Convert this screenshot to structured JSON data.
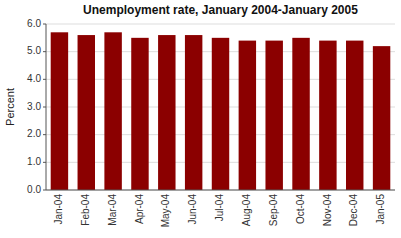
{
  "chart_data": {
    "type": "bar",
    "title": "Unemployment rate, January 2004-January 2005",
    "categories": [
      "Jan-04",
      "Feb-04",
      "Mar-04",
      "Apr-04",
      "May-04",
      "Jun-04",
      "Jul-04",
      "Aug-04",
      "Sep-04",
      "Oct-04",
      "Nov-04",
      "Dec-04",
      "Jan-05"
    ],
    "values": [
      5.7,
      5.6,
      5.7,
      5.5,
      5.6,
      5.6,
      5.5,
      5.4,
      5.4,
      5.5,
      5.4,
      5.4,
      5.2
    ],
    "color": "#8B0000",
    "ylabel": "Percent",
    "ylim": [
      0.0,
      6.0
    ],
    "yticks": [
      {
        "value": 0.0,
        "label": "0.0"
      },
      {
        "value": 1.0,
        "label": "1.0"
      },
      {
        "value": 2.0,
        "label": "2.0"
      },
      {
        "value": 3.0,
        "label": "3.0"
      },
      {
        "value": 4.0,
        "label": "4.0"
      },
      {
        "value": 5.0,
        "label": "5.0"
      },
      {
        "value": 6.0,
        "label": "6.0"
      }
    ],
    "grid": true
  }
}
